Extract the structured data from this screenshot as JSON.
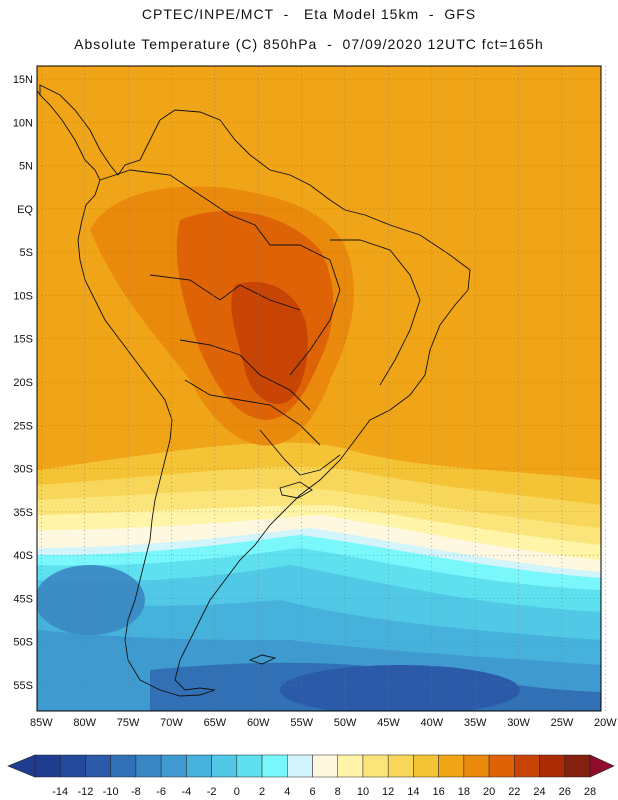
{
  "header": {
    "line1": "CPTEC/INPE/MCT  -   Eta Model 15km  -  GFS",
    "line2": "Absolute Temperature (C) 850hPa  -  07/09/2020 12UTC fct=165h"
  },
  "map": {
    "lat_labels": [
      "15N",
      "10N",
      "5N",
      "EQ",
      "5S",
      "10S",
      "15S",
      "20S",
      "25S",
      "30S",
      "35S",
      "40S",
      "45S",
      "50S",
      "55S"
    ],
    "lat_values": [
      15,
      10,
      5,
      0,
      -5,
      -10,
      -15,
      -20,
      -25,
      -30,
      -35,
      -40,
      -45,
      -50,
      -55
    ],
    "lon_labels": [
      "85W",
      "80W",
      "75W",
      "70W",
      "65W",
      "60W",
      "55W",
      "50W",
      "45W",
      "40W",
      "35W",
      "30W",
      "25W",
      "20W"
    ],
    "lon_values": [
      -85,
      -80,
      -75,
      -70,
      -65,
      -60,
      -55,
      -50,
      -45,
      -40,
      -35,
      -30,
      -25,
      -20
    ],
    "lon_range": [
      -85.5,
      -20.5
    ],
    "lat_range": [
      -58,
      16.5
    ]
  },
  "colorbar": {
    "labels": [
      "-14",
      "-12",
      "-10",
      "-8",
      "-6",
      "-4",
      "-2",
      "0",
      "2",
      "4",
      "6",
      "8",
      "10",
      "12",
      "14",
      "16",
      "18",
      "20",
      "22",
      "24",
      "26",
      "28"
    ],
    "colors": [
      "#1f3d8f",
      "#234a9a",
      "#2a5aa8",
      "#3170b5",
      "#3a86c2",
      "#3f9bcf",
      "#46b2dc",
      "#50c8e6",
      "#5ee0ef",
      "#7af7fb",
      "#d2f4fb",
      "#fff8e0",
      "#fff4a8",
      "#fbe57a",
      "#f8d65a",
      "#f5c436",
      "#f0a418",
      "#ea8a0c",
      "#de6206",
      "#c84404",
      "#aa2b04",
      "#842010",
      "#8f0d2a"
    ]
  }
}
